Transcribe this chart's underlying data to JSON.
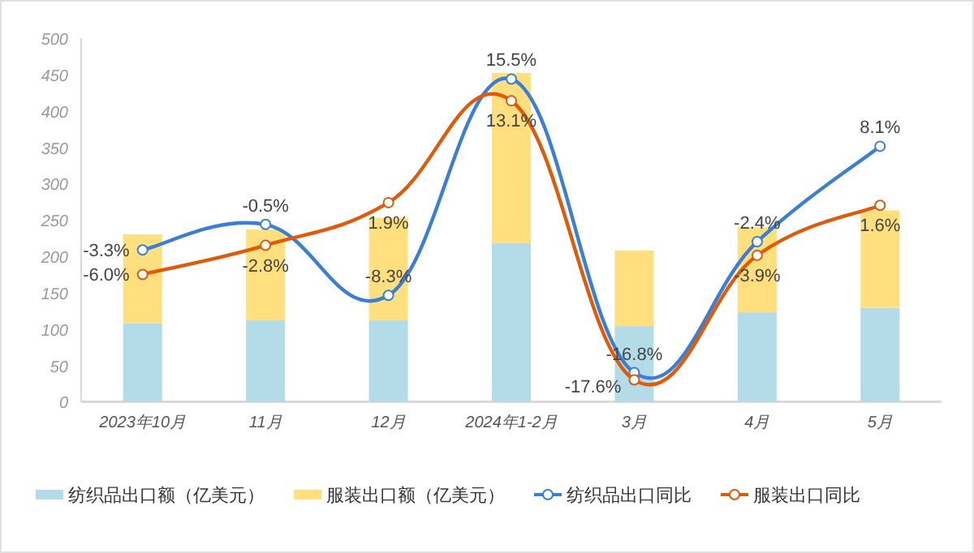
{
  "chart_data": {
    "type": "bar",
    "stacked": true,
    "categories": [
      "2023年10月",
      "11月",
      "12月",
      "2024年1-2月",
      "3月",
      "4月",
      "5月"
    ],
    "ylim": [
      0,
      500
    ],
    "yticks": [
      0,
      50,
      100,
      150,
      200,
      250,
      300,
      350,
      400,
      450,
      500
    ],
    "y2lim": [
      -20,
      20
    ],
    "tick_labels": "xy",
    "legend": "bottom",
    "grid": false,
    "series": [
      {
        "name": "纺织品出口额（亿美元）",
        "color": "#b4dce8",
        "values": [
          108,
          112,
          112,
          218,
          104,
          123,
          129
        ]
      },
      {
        "name": "服装出口额（亿美元）",
        "color": "#ffdf7e",
        "values": [
          122,
          125,
          141,
          234,
          104,
          117,
          134
        ]
      },
      {
        "name": "纺织品出口同比",
        "type": "line",
        "axis": "y2",
        "marker": "circle",
        "color": "#3a7fd5",
        "values": [
          -3.3,
          -0.5,
          -8.3,
          15.5,
          -16.8,
          -2.4,
          8.1
        ],
        "value_labels": [
          "-3.3%",
          "-0.5%",
          "-8.3%",
          "15.5%",
          "-16.8%",
          "-2.4%",
          "8.1%"
        ]
      },
      {
        "name": "服装出口同比",
        "type": "line",
        "axis": "y2",
        "marker": "circle",
        "color": "#e05a0a",
        "values": [
          -6.0,
          -2.8,
          1.9,
          13.1,
          -17.6,
          -3.9,
          1.6
        ],
        "value_labels": [
          "-6.0%",
          "-2.8%",
          "1.9%",
          "13.1%",
          "-17.6%",
          "-3.9%",
          "1.6%"
        ]
      }
    ]
  }
}
